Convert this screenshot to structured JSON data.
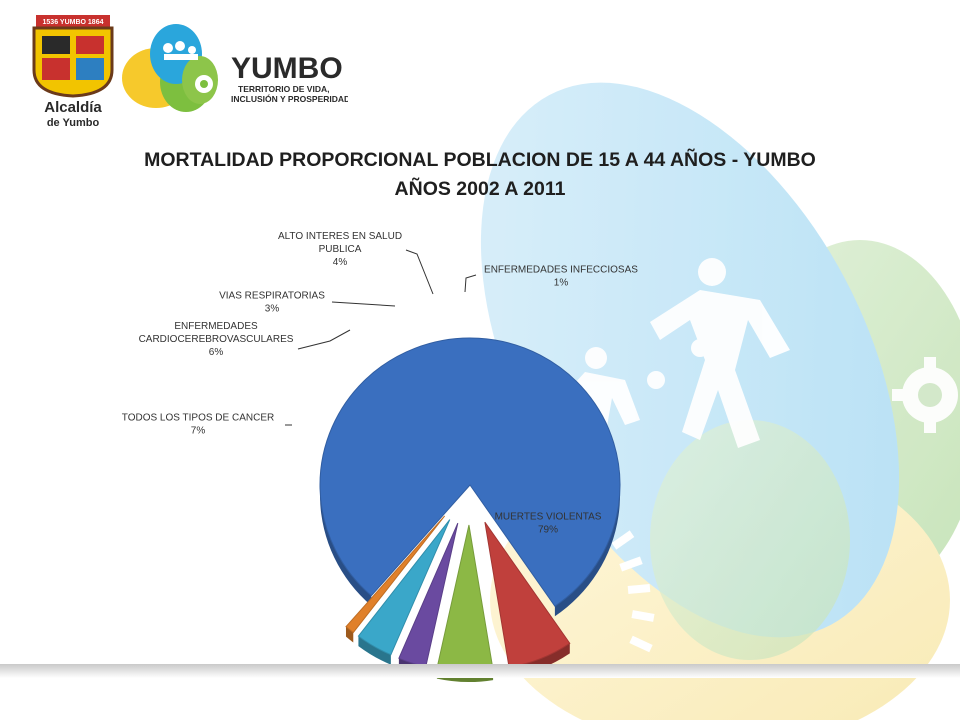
{
  "header": {
    "seal_text": "1536 YUMBO 1864",
    "municipality_line1": "Alcaldía",
    "municipality_line2": "de Yumbo",
    "brand_name": "YUMBO",
    "slogan_line1": "TERRITORIO DE VIDA,",
    "slogan_line2": "INCLUSIÓN Y PROSPERIDAD"
  },
  "colors": {
    "violentas": "#3a6fbf",
    "cancer": "#c0403c",
    "cardio": "#8cb845",
    "respiratorias": "#6a4aa0",
    "salud_publica": "#3aa7c9",
    "infecciosas": "#e0802a",
    "bg_blue": "#bfe3f5",
    "bg_green": "#cde6c2",
    "bg_yellow": "#fbeec0"
  },
  "chart_data": {
    "type": "pie",
    "title": "MORTALIDAD PROPORCIONAL POBLACION DE 15 A 44 AÑOS - YUMBO",
    "subtitle": "AÑOS 2002 A 2011",
    "slices": [
      {
        "key": "violentas",
        "label": [
          "MUERTES  VIOLENTAS"
        ],
        "value": 79,
        "pct_label": "79%",
        "color": "#3a6fbf"
      },
      {
        "key": "cancer",
        "label": [
          "TODOS LOS TIPOS DE CANCER"
        ],
        "value": 7,
        "pct_label": "7%",
        "color": "#c0403c"
      },
      {
        "key": "cardio",
        "label": [
          "ENFERMEDADES",
          "CARDIOCEREBROVASCULARES"
        ],
        "value": 6,
        "pct_label": "6%",
        "color": "#8cb845"
      },
      {
        "key": "respiratorias",
        "label": [
          "VIAS RESPIRATORIAS"
        ],
        "value": 3,
        "pct_label": "3%",
        "color": "#6a4aa0"
      },
      {
        "key": "salud_publica",
        "label": [
          "ALTO INTERES  EN SALUD",
          "PUBLICA"
        ],
        "value": 4,
        "pct_label": "4%",
        "color": "#3aa7c9"
      },
      {
        "key": "infecciosas",
        "label": [
          "ENFERMEDADES  INFECCIOSAS"
        ],
        "value": 1,
        "pct_label": "1%",
        "color": "#e0802a"
      }
    ]
  }
}
